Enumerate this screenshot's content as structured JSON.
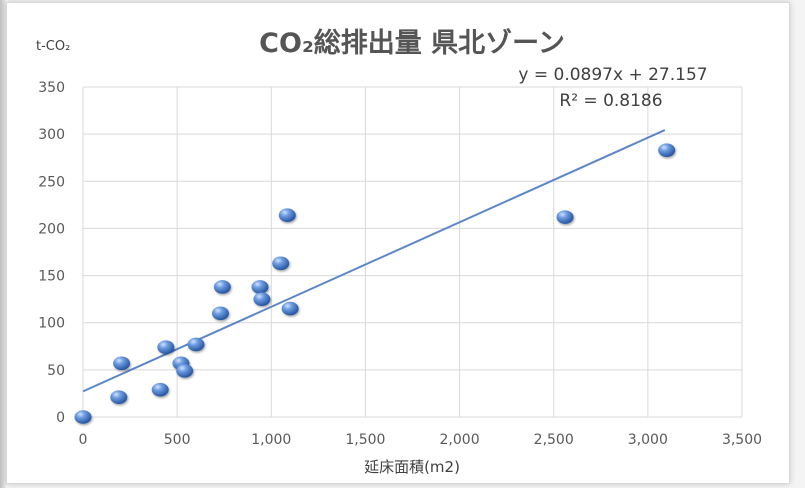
{
  "chart_data": {
    "type": "scatter",
    "title": "CO₂総排出量 県北ゾーン",
    "xlabel": "延床面積(m2)",
    "ylabel": "t-CO₂",
    "xlim": [
      0,
      3500
    ],
    "ylim": [
      0,
      350
    ],
    "x_ticks": [
      "0",
      "500",
      "1,000",
      "1,500",
      "2,000",
      "2,500",
      "3,000",
      "3,500"
    ],
    "y_ticks": [
      "0",
      "50",
      "100",
      "150",
      "200",
      "250",
      "300",
      "350"
    ],
    "grid": true,
    "legend": "none",
    "colors": {
      "point": "#3a6fbf",
      "trend": "#5b87c9",
      "grid": "#d9d9d9"
    },
    "series": [
      {
        "points": [
          {
            "x": 0,
            "y": 0
          },
          {
            "x": 190,
            "y": 21
          },
          {
            "x": 205,
            "y": 57
          },
          {
            "x": 410,
            "y": 29
          },
          {
            "x": 440,
            "y": 74
          },
          {
            "x": 520,
            "y": 57
          },
          {
            "x": 540,
            "y": 49
          },
          {
            "x": 600,
            "y": 77
          },
          {
            "x": 730,
            "y": 110
          },
          {
            "x": 740,
            "y": 138
          },
          {
            "x": 940,
            "y": 138
          },
          {
            "x": 950,
            "y": 125
          },
          {
            "x": 1050,
            "y": 163
          },
          {
            "x": 1085,
            "y": 214
          },
          {
            "x": 1100,
            "y": 115
          },
          {
            "x": 2560,
            "y": 212
          },
          {
            "x": 3100,
            "y": 283
          }
        ]
      }
    ],
    "trendline": {
      "type": "linear",
      "slope": 0.0897,
      "intercept": 27.157,
      "x_range": [
        0,
        3090
      ],
      "equation_label": "y = 0.0897x + 27.157",
      "r2_label": "R² = 0.8186"
    }
  }
}
